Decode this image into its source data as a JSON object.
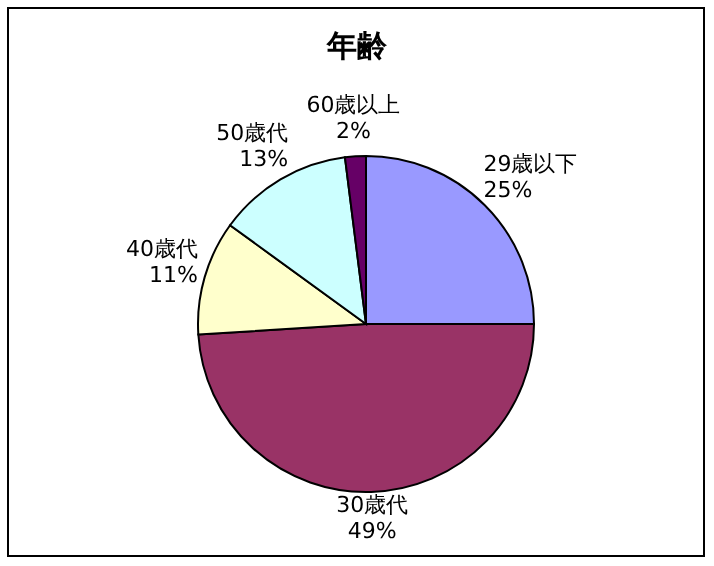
{
  "chart_data": {
    "type": "pie",
    "title": "年齢",
    "categories": [
      "29歳以下",
      "30歳代",
      "40歳代",
      "50歳代",
      "60歳以上"
    ],
    "values": [
      25,
      49,
      11,
      13,
      2
    ],
    "colors": [
      "#9999ff",
      "#993366",
      "#ffffcc",
      "#ccffff",
      "#660066"
    ],
    "value_labels": [
      "25%",
      "49%",
      "11%",
      "13%",
      "2%"
    ],
    "legend": false
  }
}
